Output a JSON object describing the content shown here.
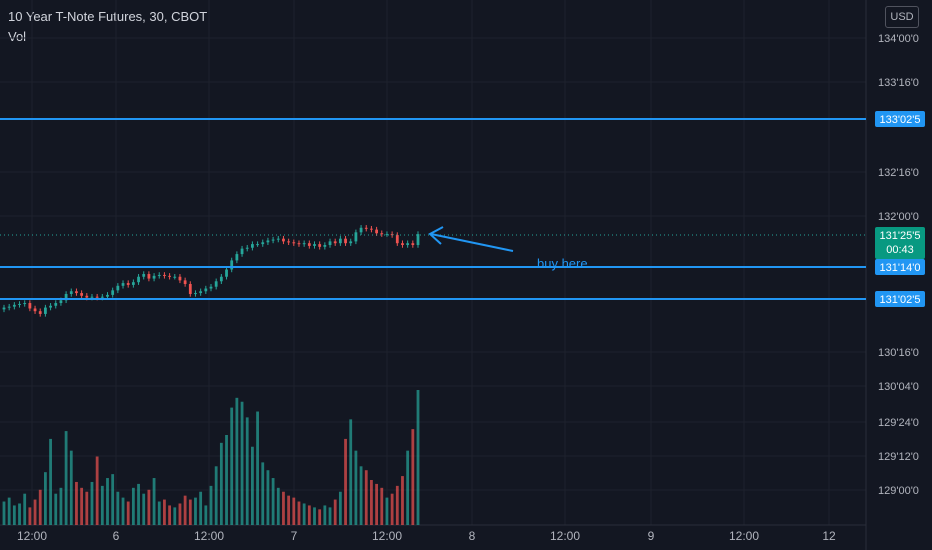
{
  "header": {
    "symbol_title": "10 Year T-Note Futures, 30, CBOT",
    "indicator": "Vol",
    "currency": "USD"
  },
  "colors": {
    "background": "#131722",
    "up": "#26a69a",
    "down": "#ef5350",
    "line": "#2196f3",
    "text": "#b2b5be",
    "grid": "#1e222d",
    "dotted": "#26a69a"
  },
  "price_axis": {
    "ticks": [
      "134'00'0",
      "133'16'0",
      "132'16'0",
      "132'00'0",
      "130'16'0",
      "130'04'0",
      "129'24'0",
      "129'12'0",
      "129'00'0"
    ]
  },
  "time_axis": {
    "ticks": [
      "12:00",
      "6",
      "12:00",
      "7",
      "12:00",
      "8",
      "12:00",
      "9",
      "12:00",
      "12"
    ]
  },
  "horizontal_lines": [
    {
      "label": "133'02'5"
    },
    {
      "label": "131'14'0"
    },
    {
      "label": "131'02'5"
    }
  ],
  "last_price": {
    "label": "131'25'5",
    "countdown": "00:43"
  },
  "annotation": {
    "text": "buy here"
  },
  "chart_data": {
    "type": "candlestick",
    "title": "10 Year T-Note Futures, 30, CBOT",
    "ylim": [
      128.83,
      134.05
    ],
    "x_labels": [
      "12:00",
      "6",
      "12:00",
      "7",
      "12:00",
      "8",
      "12:00",
      "9",
      "12:00",
      "12"
    ],
    "close": [
      130.99,
      131.0,
      131.02,
      131.03,
      131.04,
      130.98,
      130.95,
      130.92,
      130.99,
      131.01,
      131.04,
      131.07,
      131.14,
      131.17,
      131.15,
      131.12,
      131.1,
      131.11,
      131.1,
      131.11,
      131.13,
      131.18,
      131.23,
      131.26,
      131.24,
      131.27,
      131.33,
      131.36,
      131.31,
      131.34,
      131.35,
      131.34,
      131.33,
      131.33,
      131.29,
      131.25,
      131.14,
      131.15,
      131.17,
      131.2,
      131.22,
      131.28,
      131.33,
      131.41,
      131.51,
      131.58,
      131.64,
      131.65,
      131.69,
      131.69,
      131.71,
      131.73,
      131.74,
      131.75,
      131.72,
      131.71,
      131.7,
      131.69,
      131.7,
      131.67,
      131.69,
      131.66,
      131.68,
      131.72,
      131.7,
      131.75,
      131.7,
      131.72,
      131.82,
      131.87,
      131.86,
      131.85,
      131.81,
      131.8,
      131.8,
      131.79,
      131.7,
      131.68,
      131.7,
      131.68,
      131.8
    ],
    "volume": [
      12,
      14,
      10,
      11,
      16,
      9,
      13,
      18,
      27,
      44,
      16,
      19,
      48,
      38,
      22,
      19,
      17,
      22,
      35,
      20,
      24,
      26,
      17,
      14,
      12,
      19,
      21,
      16,
      18,
      24,
      12,
      13,
      10,
      9,
      11,
      15,
      13,
      14,
      17,
      10,
      20,
      30,
      42,
      46,
      60,
      65,
      63,
      55,
      40,
      58,
      32,
      28,
      24,
      19,
      17,
      15,
      14,
      12,
      11,
      10,
      9,
      8,
      10,
      9,
      13,
      17,
      44,
      54,
      38,
      30,
      28,
      23,
      21,
      19,
      14,
      16,
      20,
      25,
      38,
      49,
      69
    ]
  }
}
